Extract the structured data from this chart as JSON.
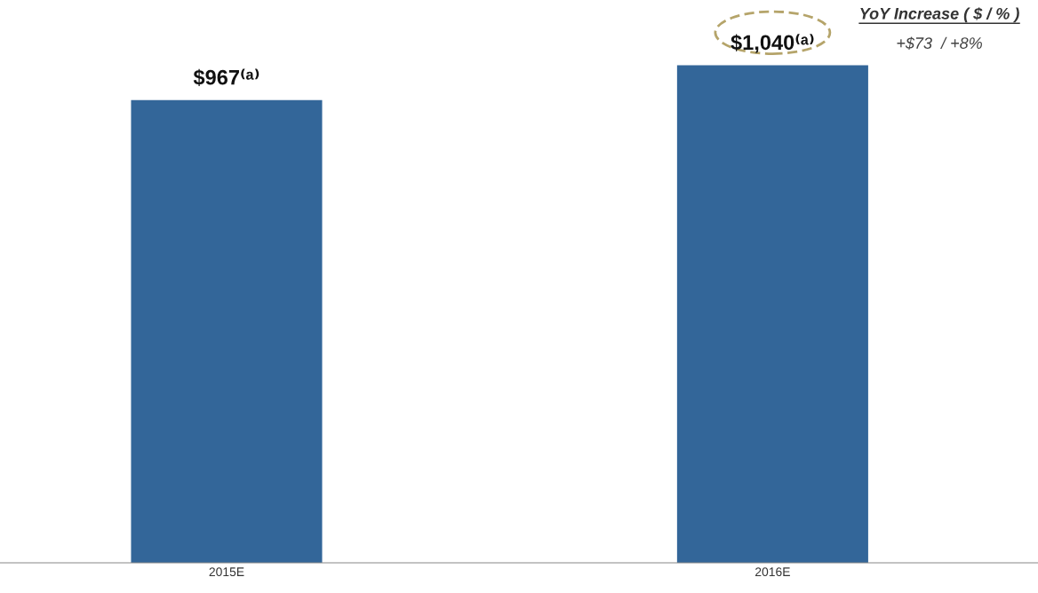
{
  "chart_data": {
    "type": "bar",
    "categories": [
      "2015E",
      "2016E"
    ],
    "values": [
      967,
      1040
    ],
    "value_labels": [
      "$967⁽ᵃ⁾",
      "$1,040⁽ᵃ⁾"
    ],
    "color": "#336699",
    "annotations": [
      "YoY Increase ( $ / % )",
      "+$73  / +8%"
    ],
    "grid": false,
    "legend": false,
    "tick_labels": "x"
  }
}
